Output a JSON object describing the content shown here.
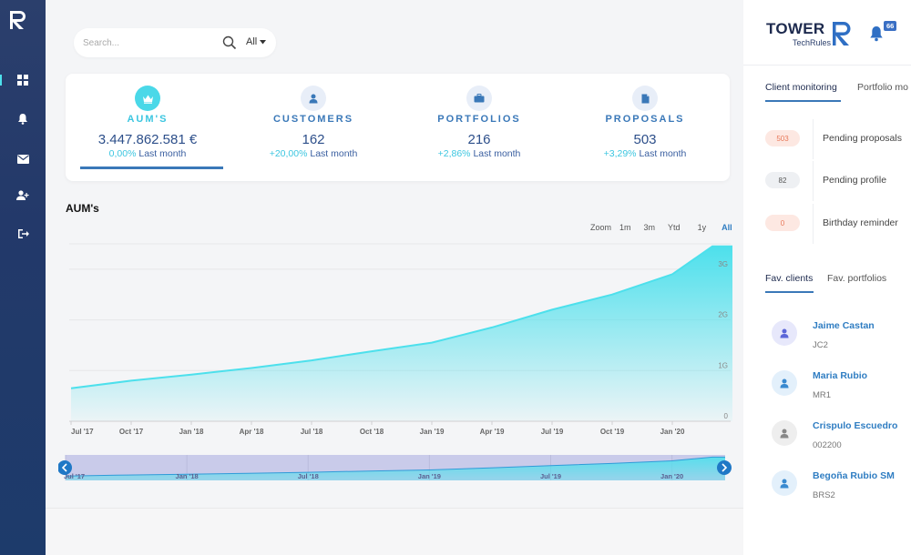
{
  "nav": {
    "logo": "R",
    "items": [
      {
        "name": "dashboard",
        "icon": "grid-icon"
      },
      {
        "name": "notifications",
        "icon": "bell-icon"
      },
      {
        "name": "messages",
        "icon": "mail-icon"
      },
      {
        "name": "add-user",
        "icon": "user-plus-icon"
      },
      {
        "name": "logout",
        "icon": "logout-icon"
      }
    ]
  },
  "search": {
    "placeholder": "Search...",
    "filter_value": "All"
  },
  "kpis": [
    {
      "title": "AUM'S",
      "value": "3.447.862.581 €",
      "change_pct": "0,00%",
      "change_label": "Last month",
      "icon": "crown-icon",
      "active": true
    },
    {
      "title": "CUSTOMERS",
      "value": "162",
      "change_pct": "+20,00%",
      "change_label": "Last month",
      "icon": "user-icon",
      "active": false
    },
    {
      "title": "PORTFOLIOS",
      "value": "216",
      "change_pct": "+2,86%",
      "change_label": "Last month",
      "icon": "briefcase-icon",
      "active": false
    },
    {
      "title": "PROPOSALS",
      "value": "503",
      "change_pct": "+3,29%",
      "change_label": "Last month",
      "icon": "document-icon",
      "active": false
    }
  ],
  "chart_section": {
    "title": "AUM's",
    "zoom_label": "Zoom",
    "zoom_options": [
      "1m",
      "3m",
      "Ytd",
      "1y",
      "All"
    ],
    "zoom_selected": "All"
  },
  "chart_data": {
    "type": "area",
    "title": "AUM's",
    "x": [
      "2017-07",
      "2017-10",
      "2018-01",
      "2018-04",
      "2018-07",
      "2018-10",
      "2019-01",
      "2019-04",
      "2019-07",
      "2019-10",
      "2020-01",
      "2020-03"
    ],
    "x_tick_labels": [
      "Jul '17",
      "Oct '17",
      "Jan '18",
      "Apr '18",
      "Jul '18",
      "Oct '18",
      "Jan '19",
      "Apr '19",
      "Jul '19",
      "Oct '19",
      "Jan '20"
    ],
    "series": [
      {
        "values": [
          0.65,
          0.8,
          0.92,
          1.05,
          1.2,
          1.38,
          1.55,
          1.85,
          2.2,
          2.5,
          2.9,
          3.45
        ]
      }
    ],
    "y_tick_labels": [
      "0",
      "1G",
      "2G",
      "3G"
    ],
    "ylim": [
      0,
      3.5
    ],
    "y_unit": "G",
    "grid": true,
    "colors": {
      "line": "#4de0ec",
      "fill_top": "#4de0ec",
      "fill_bottom": "#ffffff"
    },
    "navigator_tick_labels": [
      "Jul '17",
      "Jan '18",
      "Jul '18",
      "Jan '19",
      "Jul '19",
      "Jan '20"
    ]
  },
  "right_panel": {
    "brand_name": "TOWER",
    "brand_sub": "TechRules",
    "notification_count": "66",
    "tabs": [
      {
        "label": "Client monitoring",
        "active": true
      },
      {
        "label": "Portfolio mo",
        "active": false
      }
    ],
    "monitoring": [
      {
        "count": "503",
        "label": "Pending proposals",
        "bg": "#fde8e2",
        "fg": "#e8795a"
      },
      {
        "count": "82",
        "label": "Pending profile",
        "bg": "#eef0f3",
        "fg": "#555555"
      },
      {
        "count": "0",
        "label": "Birthday reminder",
        "bg": "#fde8e2",
        "fg": "#e8795a"
      }
    ],
    "fav_tabs": [
      {
        "label": "Fav. clients",
        "active": true
      },
      {
        "label": "Fav. portfolios",
        "active": false
      }
    ],
    "clients": [
      {
        "name": "Jaime Castan",
        "code": "JC2",
        "avatar_bg": "#e7e8fb",
        "avatar_fg": "#5c67d8"
      },
      {
        "name": "Maria Rubio",
        "code": "MR1",
        "avatar_bg": "#e3f0fb",
        "avatar_fg": "#3a8ad0"
      },
      {
        "name": "Crispulo Escuedro",
        "code": "002200",
        "avatar_bg": "#eeeeee",
        "avatar_fg": "#888888"
      },
      {
        "name": "Begoña Rubio SM",
        "code": "BRS2",
        "avatar_bg": "#e3f0fb",
        "avatar_fg": "#3a8ad0"
      }
    ]
  }
}
